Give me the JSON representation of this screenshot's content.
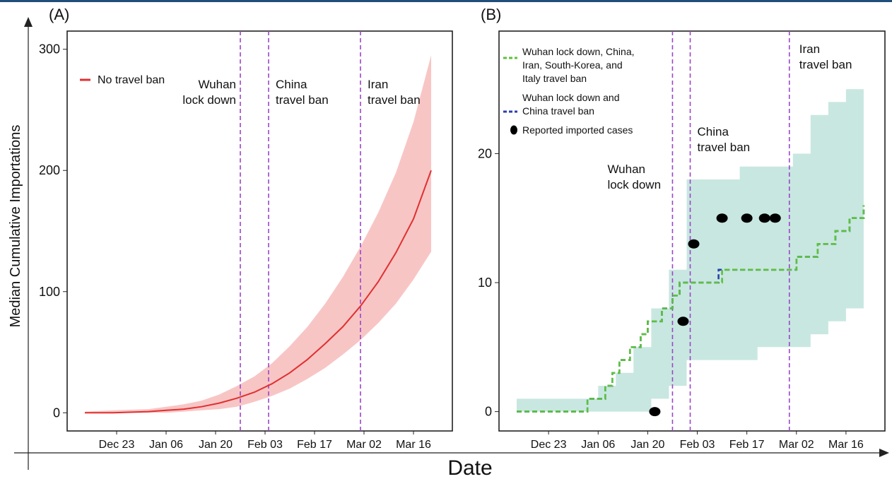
{
  "figure": {
    "ylabel": "Median Cumulative Importations",
    "xlabel": "Date"
  },
  "chart_data": [
    {
      "type": "line",
      "panel_label": "(A)",
      "x_tick_labels": [
        "Dec 23",
        "Jan 06",
        "Jan 20",
        "Feb 03",
        "Feb 17",
        "Mar 02",
        "Mar 16"
      ],
      "y_ticks": [
        0,
        100,
        200,
        300
      ],
      "ylim": [
        -15,
        315
      ],
      "xlim_day": [
        -23,
        86
      ],
      "legend": {
        "placement": "top-left",
        "entries": [
          {
            "label": "No travel ban",
            "color": "#e03030"
          }
        ]
      },
      "series": [
        {
          "name": "No travel ban",
          "color": "#e03030",
          "band_color": "#f8c5c5",
          "day": [
            -18,
            -10,
            0,
            5,
            10,
            15,
            20,
            25,
            30,
            35,
            40,
            45,
            50,
            55,
            60,
            65,
            70,
            75,
            80
          ],
          "values": [
            0,
            0,
            1,
            2,
            3,
            5,
            8,
            12,
            17,
            24,
            33,
            44,
            57,
            71,
            88,
            108,
            132,
            160,
            200
          ],
          "lower": [
            0,
            0,
            0,
            0,
            1,
            2,
            3,
            5,
            9,
            14,
            20,
            28,
            37,
            48,
            60,
            74,
            90,
            110,
            133
          ],
          "upper": [
            1,
            2,
            3,
            5,
            7,
            10,
            15,
            22,
            30,
            41,
            55,
            71,
            90,
            112,
            137,
            165,
            198,
            240,
            295
          ]
        }
      ],
      "annotations": [
        {
          "day": 26,
          "text": [
            "Wuhan",
            "lock down"
          ]
        },
        {
          "day": 34,
          "text": [
            "China",
            "travel ban"
          ]
        },
        {
          "day": 60,
          "text": [
            "Iran",
            "travel ban"
          ]
        }
      ]
    },
    {
      "type": "line",
      "panel_label": "(B)",
      "x_tick_labels": [
        "Dec 23",
        "Jan 06",
        "Jan 20",
        "Feb 03",
        "Feb 17",
        "Mar 02",
        "Mar 16"
      ],
      "y_ticks": [
        0,
        10,
        20
      ],
      "ylim": [
        -1.5,
        29.5
      ],
      "xlim_day": [
        -23,
        86
      ],
      "legend": {
        "placement": "top-left",
        "entries": [
          {
            "label": [
              "Wuhan lock down, China,",
              "Iran, South-Korea, and",
              "Italy travel ban"
            ],
            "color": "#5cc13b",
            "style": "dashed"
          },
          {
            "label": [
              "Wuhan lock down and",
              "China travel ban"
            ],
            "color": "#2a3fb0",
            "style": "dashed"
          },
          {
            "label": [
              "Reported imported cases"
            ],
            "color": "#000000",
            "style": "marker"
          }
        ]
      },
      "band": {
        "color": "#c8e7e0",
        "day": [
          -18,
          -10,
          0,
          5,
          10,
          15,
          20,
          25,
          30,
          35,
          40,
          45,
          50,
          55,
          60,
          65,
          70,
          75,
          80
        ],
        "lower": [
          0,
          0,
          0,
          0,
          0,
          0,
          1,
          2,
          4,
          4,
          4,
          4,
          5,
          5,
          5,
          6,
          7,
          8,
          8
        ],
        "upper": [
          1,
          1,
          1,
          2,
          3,
          5,
          8,
          11,
          18,
          18,
          18,
          19,
          19,
          19,
          20,
          23,
          24,
          25,
          27
        ]
      },
      "series": [
        {
          "name": "Wuhan lock down, China, Iran, South-Korea, and Italy travel ban",
          "color": "#5cc13b",
          "day": [
            -18,
            0,
            2,
            6,
            7,
            9,
            11,
            14,
            17,
            19,
            23,
            26,
            28,
            38,
            40,
            44,
            60,
            61,
            64,
            67,
            72,
            76,
            80
          ],
          "values": [
            0,
            0,
            1,
            1,
            2,
            3,
            4,
            5,
            6,
            7,
            8,
            9,
            10,
            10,
            11,
            11,
            11,
            12,
            12,
            13,
            14,
            15,
            16
          ]
        },
        {
          "name": "Wuhan lock down and China travel ban",
          "color": "#2a3fb0",
          "day": [
            -18,
            0,
            2,
            6,
            7,
            9,
            11,
            14,
            17,
            19,
            23,
            26,
            28,
            38,
            39,
            44,
            59,
            61,
            64,
            67,
            72,
            76,
            80
          ],
          "values": [
            0,
            0,
            1,
            1,
            2,
            3,
            4,
            5,
            6,
            7,
            8,
            9,
            10,
            10,
            11,
            11,
            11,
            12,
            12,
            13,
            14,
            15,
            16
          ]
        }
      ],
      "points": {
        "name": "Reported imported cases",
        "day": [
          21,
          29,
          32,
          40,
          47,
          52,
          55
        ],
        "values": [
          0,
          7,
          13,
          15,
          15,
          15,
          15
        ]
      },
      "annotations": [
        {
          "day": 26,
          "text": [
            "Wuhan",
            "lock down"
          ]
        },
        {
          "day": 31,
          "text": [
            "China",
            "travel ban"
          ]
        },
        {
          "day": 59,
          "text": [
            "Iran",
            "travel ban"
          ]
        }
      ]
    }
  ]
}
